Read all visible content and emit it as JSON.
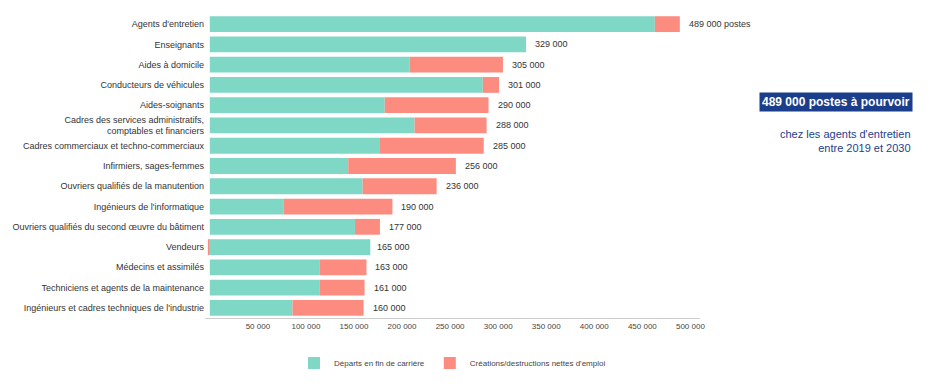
{
  "chart_data": {
    "type": "bar",
    "orientation": "horizontal",
    "stacked": true,
    "categories": [
      "Agents d'entretien",
      "Enseignants",
      "Aides à domicile",
      "Conducteurs de véhicules",
      "Aides-soignants",
      "Cadres des services administratifs,\ncomptables et financiers",
      "Cadres commerciaux et techno-commerciaux",
      "Infirmiers, sages-femmes",
      "Ouvriers qualifiés de la manutention",
      "Ingénieurs de l'informatique",
      "Ouvriers qualifiés du second œuvre du bâtiment",
      "Vendeurs",
      "Médecins et assimilés",
      "Techniciens et agents de la maintenance",
      "Ingénieurs et cadres techniques de l'industrie"
    ],
    "series": [
      {
        "name": "Départs en fin de carrière",
        "color": "#7fd7c6",
        "values": [
          463000,
          329000,
          208000,
          284000,
          182000,
          213000,
          177000,
          144000,
          159000,
          77000,
          151000,
          167000,
          114000,
          114000,
          86000
        ]
      },
      {
        "name": "Créations/destructions nettes d'emploi",
        "color": "#fb8c7f",
        "values": [
          26000,
          0,
          97000,
          17000,
          108000,
          75000,
          108000,
          112000,
          77000,
          113000,
          26000,
          -2000,
          49000,
          47000,
          74000
        ]
      }
    ],
    "totals": [
      489000,
      329000,
      305000,
      301000,
      290000,
      288000,
      285000,
      256000,
      236000,
      190000,
      177000,
      165000,
      163000,
      161000,
      160000
    ],
    "total_labels": [
      "489 000 postes",
      "329 000",
      "305 000",
      "301 000",
      "290 000",
      "288 000",
      "285 000",
      "256 000",
      "236 000",
      "190 000",
      "177 000",
      "165 000",
      "163 000",
      "161 000",
      "160 000"
    ],
    "xlim": [
      -5000,
      510000
    ],
    "xticks": [
      {
        "value": 50000,
        "label": "50 000"
      },
      {
        "value": 100000,
        "label": "100 000"
      },
      {
        "value": 150000,
        "label": "150 000"
      },
      {
        "value": 200000,
        "label": "200 000"
      },
      {
        "value": 250000,
        "label": "250 000"
      },
      {
        "value": 300000,
        "label": "300 000"
      },
      {
        "value": 350000,
        "label": "350 000"
      },
      {
        "value": 400000,
        "label": "400 000"
      },
      {
        "value": 450000,
        "label": "450 000"
      },
      {
        "value": 500000,
        "label": "500 000"
      }
    ],
    "grid": false,
    "legend": "bottom",
    "annotations": [
      "489 000 postes à pourvoir",
      "chez les agents d'entretien\nentre 2019 et 2030"
    ]
  }
}
